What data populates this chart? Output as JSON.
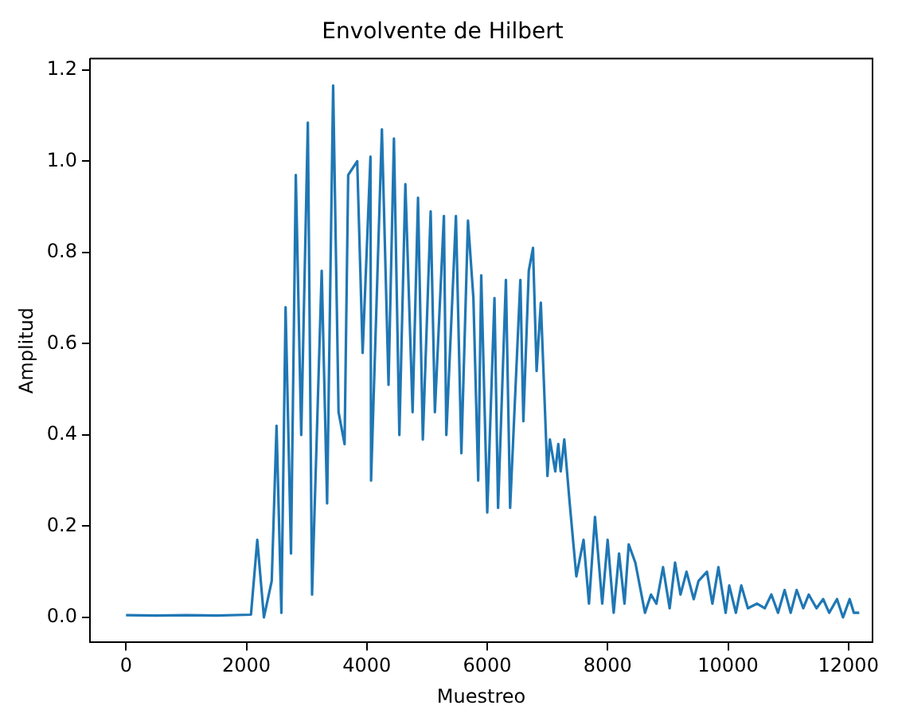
{
  "chart_data": {
    "type": "line",
    "title": "Envolvente de Hilbert",
    "xlabel": "Muestreo",
    "ylabel": "Amplitud",
    "grid": false,
    "marker": "none",
    "line_style": "solid",
    "xlim": [
      -600,
      12400
    ],
    "xticks": [
      0,
      2000,
      4000,
      6000,
      8000,
      10000,
      12000
    ],
    "ylim": [
      -0.055,
      1.225
    ],
    "yticks": [
      {
        "value": 0,
        "label": "0.0"
      },
      0.2,
      0.4,
      0.6,
      0.8,
      {
        "value": 1,
        "label": "1.0"
      },
      1.2
    ],
    "series": [
      {
        "color": "#1f77b4",
        "x": [
          0,
          500,
          1000,
          1500,
          2075,
          2180,
          2290,
          2420,
          2500,
          2580,
          2650,
          2740,
          2820,
          2910,
          3020,
          3090,
          3250,
          3340,
          3440,
          3530,
          3630,
          3690,
          3840,
          3930,
          4060,
          4070,
          4250,
          4360,
          4450,
          4540,
          4640,
          4760,
          4850,
          4930,
          5060,
          5130,
          5280,
          5320,
          5480,
          5570,
          5680,
          5770,
          5850,
          5900,
          6000,
          6120,
          6180,
          6310,
          6380,
          6550,
          6600,
          6690,
          6760,
          6820,
          6890,
          6960,
          7000,
          7040,
          7130,
          7180,
          7220,
          7280,
          7370,
          7480,
          7600,
          7690,
          7790,
          7910,
          8000,
          8100,
          8190,
          8280,
          8350,
          8460,
          8620,
          8720,
          8810,
          8920,
          9030,
          9120,
          9210,
          9310,
          9430,
          9510,
          9650,
          9740,
          9840,
          9960,
          10020,
          10130,
          10220,
          10330,
          10480,
          10610,
          10720,
          10830,
          10940,
          11040,
          11140,
          11250,
          11340,
          11470,
          11580,
          11680,
          11810,
          11910,
          12020,
          12090,
          12180
        ],
        "values": [
          0.005,
          0.004,
          0.005,
          0.004,
          0.006,
          0.17,
          0.0,
          0.08,
          0.42,
          0.01,
          0.68,
          0.14,
          0.97,
          0.4,
          1.085,
          0.05,
          0.76,
          0.25,
          1.166,
          0.45,
          0.38,
          0.97,
          1.0,
          0.58,
          1.01,
          0.3,
          1.07,
          0.51,
          1.05,
          0.4,
          0.95,
          0.45,
          0.92,
          0.39,
          0.89,
          0.45,
          0.88,
          0.4,
          0.88,
          0.36,
          0.87,
          0.7,
          0.3,
          0.75,
          0.23,
          0.7,
          0.24,
          0.74,
          0.24,
          0.74,
          0.43,
          0.76,
          0.81,
          0.54,
          0.69,
          0.45,
          0.31,
          0.39,
          0.32,
          0.38,
          0.32,
          0.39,
          0.25,
          0.09,
          0.17,
          0.03,
          0.22,
          0.03,
          0.17,
          0.01,
          0.14,
          0.03,
          0.16,
          0.12,
          0.01,
          0.05,
          0.03,
          0.11,
          0.02,
          0.12,
          0.05,
          0.1,
          0.04,
          0.08,
          0.1,
          0.03,
          0.11,
          0.01,
          0.07,
          0.01,
          0.07,
          0.02,
          0.03,
          0.02,
          0.05,
          0.01,
          0.06,
          0.01,
          0.06,
          0.02,
          0.05,
          0.02,
          0.04,
          0.01,
          0.04,
          0.0,
          0.04,
          0.01,
          0.01
        ]
      }
    ]
  }
}
